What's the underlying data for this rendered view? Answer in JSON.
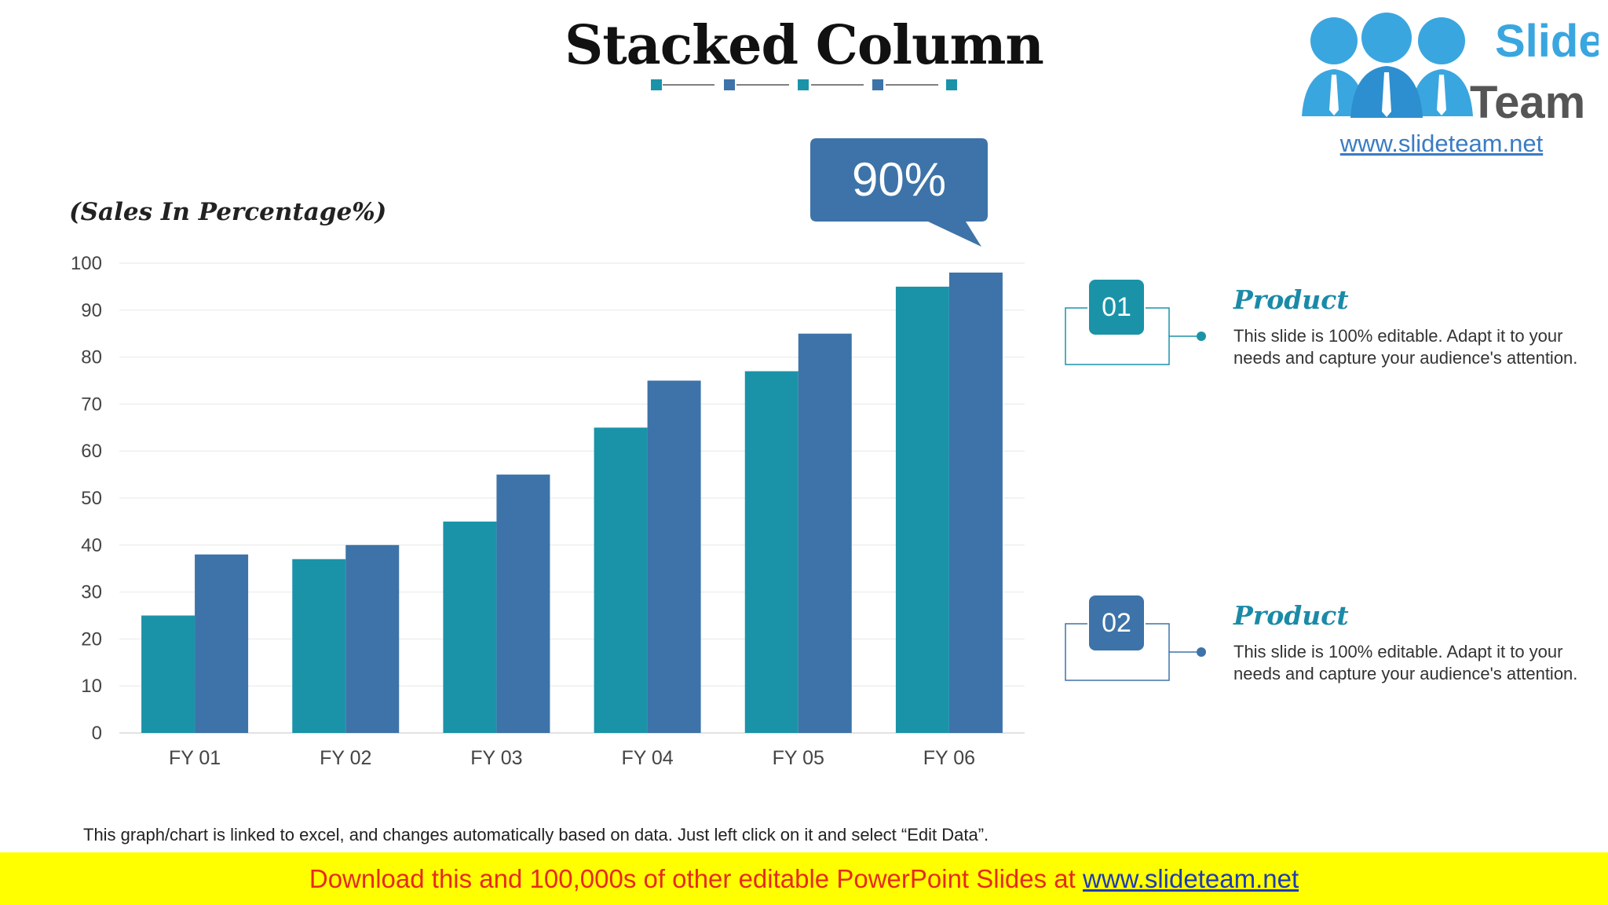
{
  "title": "Stacked Column",
  "logo": {
    "brand_line1": "Slide",
    "brand_line2": "Team",
    "url": "www.slideteam.net"
  },
  "callout": {
    "text": "90%"
  },
  "colors": {
    "series1": "#1a93a8",
    "series2": "#3d73a8",
    "accent": "#1a8aa8"
  },
  "chart_data": {
    "type": "bar",
    "categories": [
      "FY 01",
      "FY 02",
      "FY 03",
      "FY 04",
      "FY 05",
      "FY 06"
    ],
    "series": [
      {
        "values": [
          25,
          37,
          45,
          65,
          77,
          95
        ]
      },
      {
        "values": [
          38,
          40,
          55,
          75,
          85,
          98
        ]
      }
    ],
    "ylabel": "(Sales In Percentage%)",
    "ylim": [
      0,
      100
    ],
    "yticks": [
      0,
      10,
      20,
      30,
      40,
      50,
      60,
      70,
      80,
      90,
      100
    ],
    "grid": true
  },
  "items": [
    {
      "number": "01",
      "title": "Product",
      "desc": "This slide is 100% editable. Adapt it to your needs and capture your audience's attention."
    },
    {
      "number": "02",
      "title": "Product",
      "desc": "This slide is 100% editable. Adapt it to your needs and capture your audience's attention."
    }
  ],
  "footnote": "This graph/chart is linked to excel, and changes automatically based on data. Just left click on it and select “Edit Data”.",
  "banner": {
    "text": "Download this and 100,000s of other editable PowerPoint Slides at ",
    "link": "www.slideteam.net"
  }
}
